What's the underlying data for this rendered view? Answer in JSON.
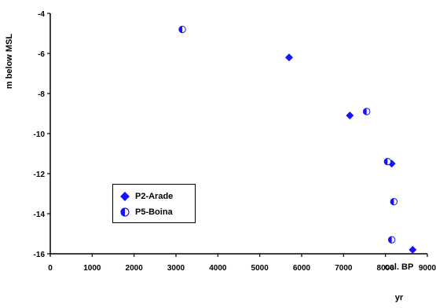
{
  "chart_data": {
    "type": "scatter",
    "title": "",
    "xlabel": "cal. BP yr",
    "xlabel_line1": "cal. BP",
    "xlabel_line2": "yr",
    "ylabel": "m below MSL",
    "xlim": [
      0,
      9000
    ],
    "ylim": [
      -16,
      -4
    ],
    "x_ticks": [
      "0",
      "1000",
      "2000",
      "3000",
      "4000",
      "5000",
      "6000",
      "7000",
      "8000",
      "9000"
    ],
    "y_ticks": [
      "-4",
      "-6",
      "-8",
      "-10",
      "-12",
      "-14",
      "-16"
    ],
    "grid": false,
    "legend_position": "lower-left",
    "series": [
      {
        "name": "P2-Arade",
        "marker": "diamond",
        "color": "#1414ff",
        "points": [
          {
            "x": 5700,
            "y": -6.2
          },
          {
            "x": 7150,
            "y": -9.1
          },
          {
            "x": 8150,
            "y": -11.5
          },
          {
            "x": 8650,
            "y": -15.8
          }
        ]
      },
      {
        "name": "P5-Boina",
        "marker": "half-filled-circle",
        "color": "#1414ff",
        "points": [
          {
            "x": 3150,
            "y": -4.8
          },
          {
            "x": 7550,
            "y": -8.9
          },
          {
            "x": 8050,
            "y": -11.4
          },
          {
            "x": 8200,
            "y": -13.4
          },
          {
            "x": 8150,
            "y": -15.3
          }
        ]
      }
    ]
  }
}
